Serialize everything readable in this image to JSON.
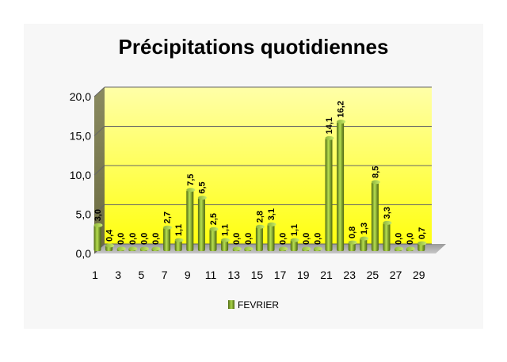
{
  "chart_data": {
    "type": "bar",
    "title": "Précipitations quotidiennes",
    "xlabel": "",
    "ylabel": "",
    "ylim": [
      0,
      20
    ],
    "yticks": [
      "0,0",
      "5,0",
      "10,0",
      "15,0",
      "20,0"
    ],
    "categories": [
      "1",
      "2",
      "3",
      "4",
      "5",
      "6",
      "7",
      "8",
      "9",
      "10",
      "11",
      "12",
      "13",
      "14",
      "15",
      "16",
      "17",
      "18",
      "19",
      "20",
      "21",
      "22",
      "23",
      "24",
      "25",
      "26",
      "27",
      "28",
      "29"
    ],
    "x_tick_labels": [
      "1",
      "3",
      "5",
      "7",
      "9",
      "11",
      "13",
      "15",
      "17",
      "19",
      "21",
      "23",
      "25",
      "27",
      "29"
    ],
    "series": [
      {
        "name": "FEVRIER",
        "values": [
          3.0,
          0.4,
          0.0,
          0.0,
          0.0,
          0.0,
          2.7,
          1.1,
          7.5,
          6.5,
          2.5,
          1.1,
          0.0,
          0.0,
          2.8,
          3.1,
          0.0,
          1.1,
          0.0,
          0.0,
          14.1,
          16.2,
          0.8,
          1.3,
          8.5,
          3.3,
          0.0,
          0.0,
          0.7
        ],
        "labels": [
          "3,0",
          "0,4",
          "0,0",
          "0,0",
          "0,0",
          "0,0",
          "2,7",
          "1,1",
          "7,5",
          "6,5",
          "2,5",
          "1,1",
          "0,0",
          "0,0",
          "2,8",
          "3,1",
          "0,0",
          "1,1",
          "0,0",
          "0,0",
          "14,1",
          "16,2",
          "0,8",
          "1,3",
          "8,5",
          "3,3",
          "0,0",
          "0,0",
          "0,7"
        ]
      }
    ],
    "grid": true,
    "legend_position": "bottom",
    "colors": {
      "bar_light": "#a9d34a",
      "bar_dark": "#4f6a12",
      "wall_top": "#ffff99",
      "wall_bottom": "#ffff00",
      "floor": "#a0a0a0"
    }
  }
}
